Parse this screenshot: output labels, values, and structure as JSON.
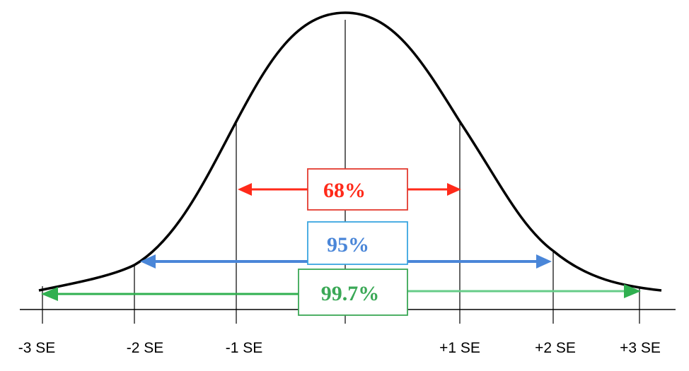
{
  "x_axis": {
    "tick_labels": [
      "-3 SE",
      "-2 SE",
      "-1 SE",
      "+1 SE",
      "+2 SE",
      "+3 SE"
    ]
  },
  "intervals": [
    {
      "label": "68%",
      "color": "#ff2a1a",
      "box_color": "#e33b30",
      "from": "-1 SE",
      "to": "+1 SE"
    },
    {
      "label": "95%",
      "color": "#4a86d8",
      "box_color": "#3aa6e0",
      "from": "-2 SE",
      "to": "+2 SE"
    },
    {
      "label": "99.7%",
      "color": "#30b050",
      "box_color": "#3aa856",
      "from": "-3 SE",
      "to": "+3 SE"
    }
  ],
  "colors": {
    "curve": "#000000",
    "axis": "#000000"
  }
}
